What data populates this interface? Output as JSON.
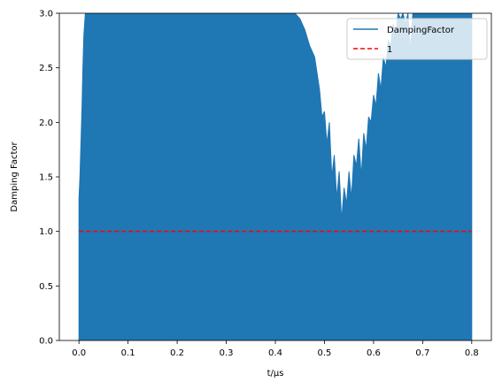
{
  "chart_data": {
    "type": "area",
    "title": "",
    "xlabel": "t/μs",
    "ylabel": "Damping Factor",
    "xlim": [
      -0.04,
      0.84
    ],
    "ylim": [
      0,
      3
    ],
    "x_ticks": [
      0.0,
      0.1,
      0.2,
      0.3,
      0.4,
      0.5,
      0.6,
      0.7,
      0.8
    ],
    "x_tick_labels": [
      "0.0",
      "0.1",
      "0.2",
      "0.3",
      "0.4",
      "0.5",
      "0.6",
      "0.7",
      "0.8"
    ],
    "y_ticks": [
      0.0,
      0.5,
      1.0,
      1.5,
      2.0,
      2.5,
      3.0
    ],
    "y_tick_labels": [
      "0.0",
      "0.5",
      "1.0",
      "1.5",
      "2.0",
      "2.5",
      "3.0"
    ],
    "grid": false,
    "legend_position": "top-right",
    "series": [
      {
        "name": "DampingFactor",
        "style": "solid",
        "color": "#1f77b4",
        "x": [
          0.0,
          0.002,
          0.004,
          0.006,
          0.008,
          0.01,
          0.013,
          0.016,
          0.02,
          0.04,
          0.1,
          0.2,
          0.3,
          0.4,
          0.44,
          0.45,
          0.46,
          0.47,
          0.48,
          0.485,
          0.49,
          0.495,
          0.5,
          0.505,
          0.51,
          0.515,
          0.52,
          0.525,
          0.53,
          0.535,
          0.54,
          0.545,
          0.55,
          0.555,
          0.56,
          0.565,
          0.57,
          0.575,
          0.58,
          0.585,
          0.59,
          0.595,
          0.6,
          0.605,
          0.61,
          0.615,
          0.62,
          0.625,
          0.63,
          0.635,
          0.64,
          0.645,
          0.65,
          0.655,
          0.66,
          0.665,
          0.67,
          0.675,
          0.68,
          0.69,
          0.7,
          0.75,
          0.8
        ],
        "y": [
          1.3,
          1.5,
          1.8,
          2.1,
          2.5,
          2.8,
          3.0,
          3.0,
          3.0,
          3.0,
          3.0,
          3.0,
          3.0,
          3.0,
          3.0,
          2.95,
          2.85,
          2.7,
          2.6,
          2.45,
          2.3,
          2.05,
          2.1,
          1.8,
          2.0,
          1.5,
          1.7,
          1.3,
          1.55,
          1.1,
          1.4,
          1.25,
          1.55,
          1.3,
          1.7,
          1.6,
          1.85,
          1.5,
          1.9,
          1.75,
          2.05,
          2.0,
          2.25,
          2.15,
          2.45,
          2.3,
          2.6,
          2.5,
          2.75,
          2.7,
          2.9,
          2.8,
          3.0,
          2.95,
          3.0,
          2.9,
          3.0,
          2.65,
          3.0,
          3.0,
          3.0,
          3.0,
          3.0
        ]
      },
      {
        "name": "1",
        "style": "dashed",
        "color": "#ff0000",
        "x": [
          0.0,
          0.8
        ],
        "y": [
          1.0,
          1.0
        ]
      }
    ]
  }
}
